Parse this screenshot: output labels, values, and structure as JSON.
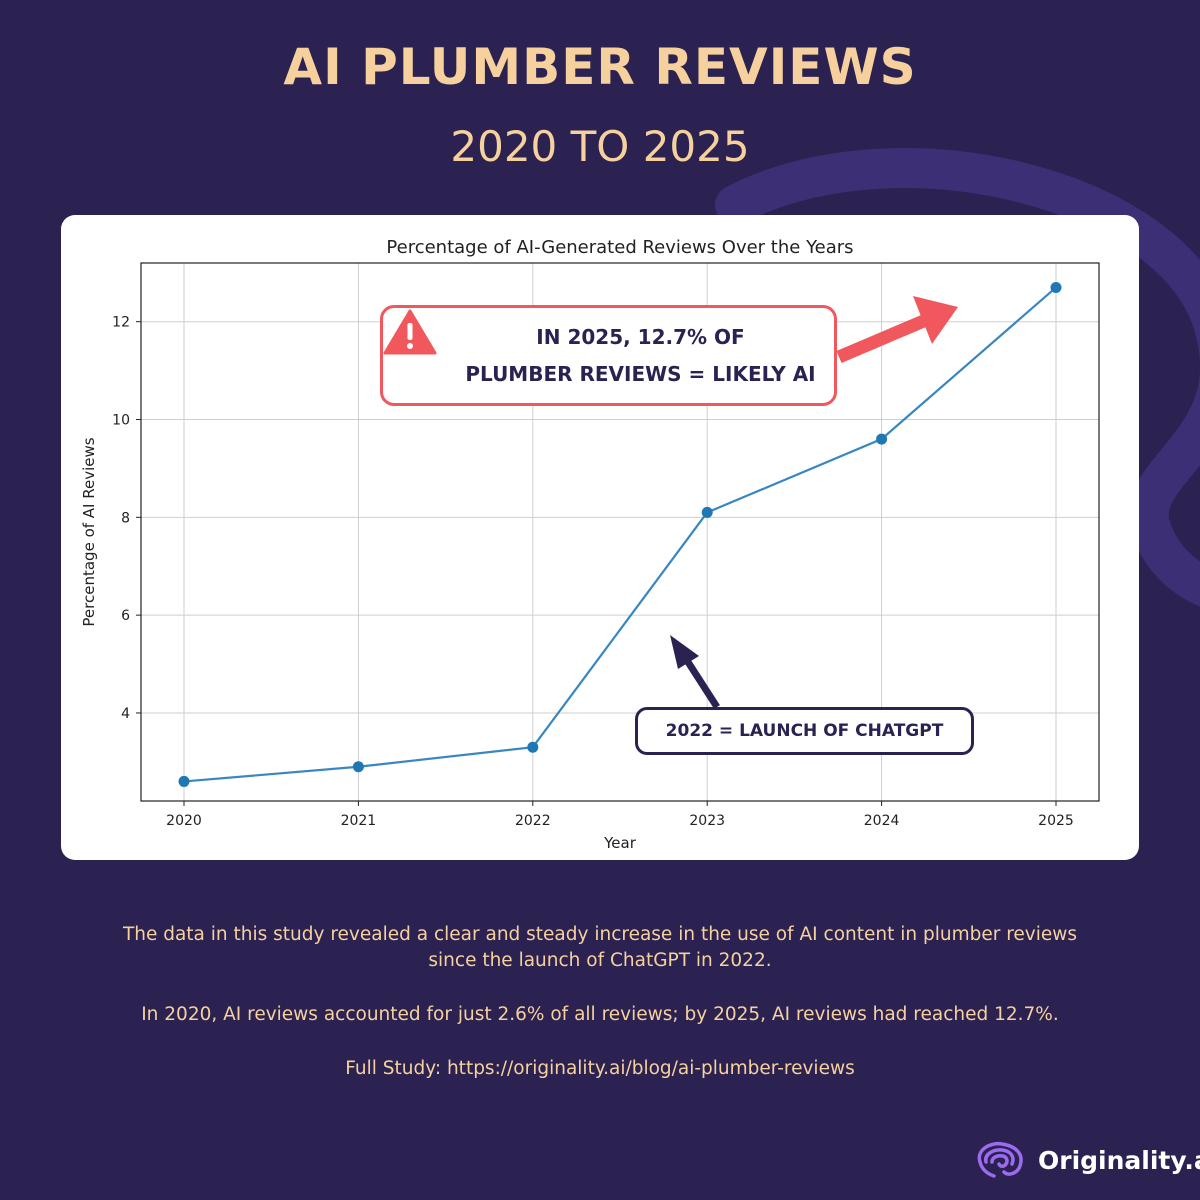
{
  "header": {
    "title": "AI PLUMBER REVIEWS",
    "subtitle": "2020 TO 2025"
  },
  "chart_data": {
    "type": "line",
    "title": "Percentage of AI-Generated Reviews Over the Years",
    "xlabel": "Year",
    "ylabel": "Percentage of AI Reviews",
    "categories": [
      "2020",
      "2021",
      "2022",
      "2023",
      "2024",
      "2025"
    ],
    "series": [
      {
        "values": [
          2.6,
          2.9,
          3.3,
          8.1,
          9.6,
          12.7
        ]
      }
    ],
    "ylim": [
      2.2,
      13.2
    ],
    "yticks": [
      4,
      6,
      8,
      10,
      12
    ],
    "grid": true,
    "line_color": "#3a87c0",
    "marker_color": "#1f77b4"
  },
  "annotations": {
    "red_callout_line1": "IN 2025, 12.7% OF",
    "red_callout_line2": "PLUMBER REVIEWS = LIKELY AI",
    "dark_callout": "2022 = LAUNCH  OF CHATGPT",
    "red_color": "#f0585d",
    "dark_color": "#2b2252"
  },
  "footer": {
    "paragraph1_line1": "The data in this study revealed a clear and steady increase in the use of AI content in plumber reviews",
    "paragraph1_line2": "since the launch of ChatGPT in 2022.",
    "paragraph2": "In 2020, AI reviews accounted for just 2.6% of all reviews; by 2025, AI reviews had reached 12.7%.",
    "study_link": "Full Study: https://originality.ai/blog/ai-plumber-reviews"
  },
  "brand": {
    "name": "Originality.ai",
    "icon": "brain-icon"
  },
  "colors": {
    "background": "#2b2252",
    "accent_text": "#f6d19e",
    "decor_stroke": "#3d2f76"
  }
}
